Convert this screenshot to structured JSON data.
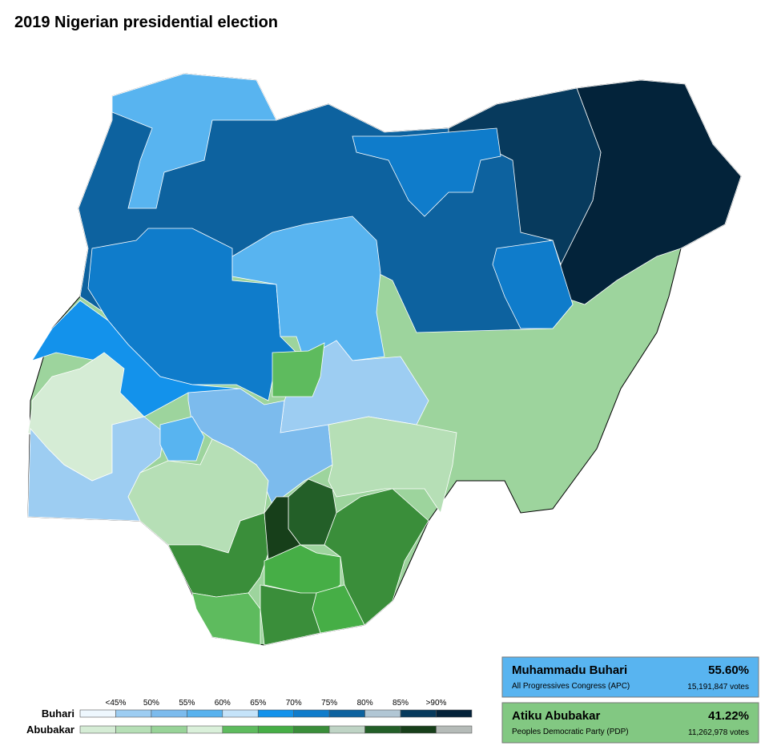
{
  "title": "2019 Nigerian presidential election",
  "legend": {
    "labels": [
      "<45%",
      "50%",
      "55%",
      "60%",
      "65%",
      "70%",
      "75%",
      "80%",
      "85%",
      ">90%"
    ],
    "rows": [
      {
        "name": "Buhari",
        "colors": [
          "#eef7fe",
          "#9dcdf2",
          "#7cbbed",
          "#58b2ee",
          "#c5e3f9",
          "#1392eb",
          "#0f7ccb",
          "#0d629f",
          "#b1c6d4",
          "#073a5d",
          "#03223a"
        ]
      },
      {
        "name": "Abubakar",
        "colors": [
          "#d5ecd5",
          "#b6dfb6",
          "#98d398",
          "#daf0da",
          "#5ebb5e",
          "#46ae46",
          "#3a8e3a",
          "#bfd4c5",
          "#235f28",
          "#173f1a",
          "#b5bbb8"
        ]
      }
    ]
  },
  "candidates": [
    {
      "name": "Muhammadu Buhari",
      "party": "All Progressives Congress (APC)",
      "percent": "55.60%",
      "votes": "15,191,847 votes",
      "color": "#58b4f0"
    },
    {
      "name": "Atiku Abubakar",
      "party": "Peoples Democratic Party (PDP)",
      "percent": "41.22%",
      "votes": "11,262,978 votes",
      "color": "#82c882"
    }
  ]
}
